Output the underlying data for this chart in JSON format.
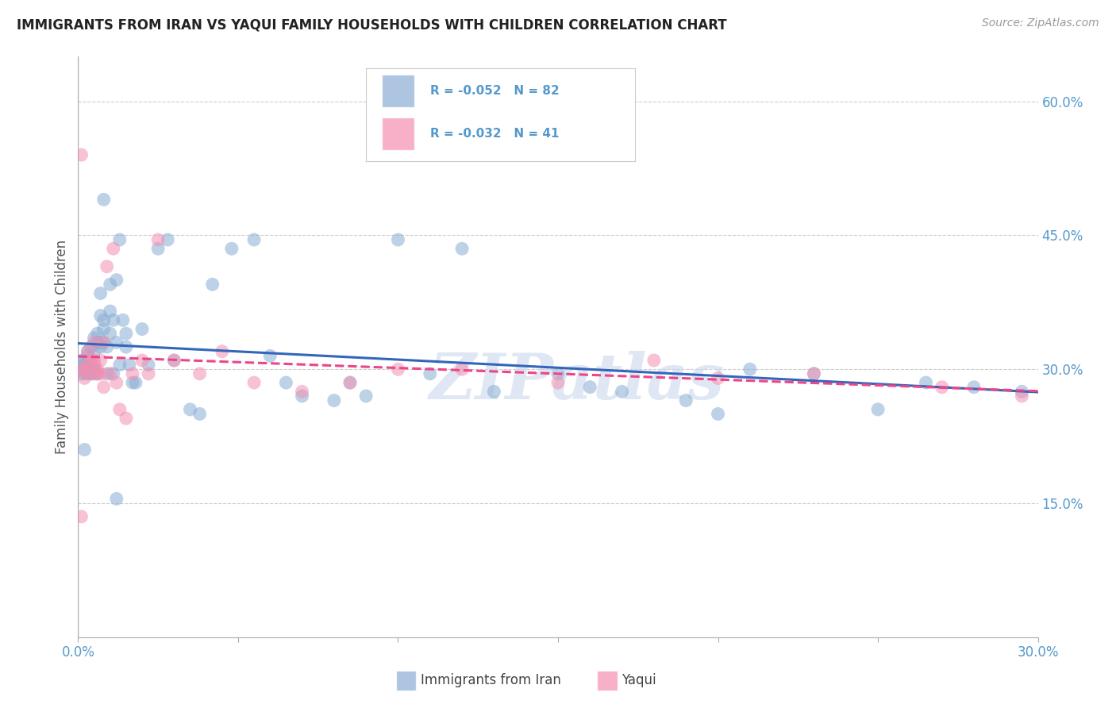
{
  "title": "IMMIGRANTS FROM IRAN VS YAQUI FAMILY HOUSEHOLDS WITH CHILDREN CORRELATION CHART",
  "source": "Source: ZipAtlas.com",
  "ylabel": "Family Households with Children",
  "legend_label1": "Immigrants from Iran",
  "legend_label2": "Yaqui",
  "legend_r1": "R = -0.052",
  "legend_n1": "N = 82",
  "legend_r2": "R = -0.032",
  "legend_n2": "N = 41",
  "xlim": [
    0.0,
    0.3
  ],
  "ylim": [
    0.0,
    0.65
  ],
  "yticks": [
    0.15,
    0.3,
    0.45,
    0.6
  ],
  "xtick_positions": [
    0.0,
    0.05,
    0.1,
    0.15,
    0.2,
    0.25,
    0.3
  ],
  "xtick_labels_show": [
    "0.0%",
    "",
    "",
    "",
    "",
    "",
    "30.0%"
  ],
  "color_blue": "#8AADD4",
  "color_pink": "#F48FB1",
  "color_line_blue": "#3366BB",
  "color_line_pink": "#EE4488",
  "color_axis_text": "#5599CC",
  "watermark": "ZIPatlas",
  "blue_x": [
    0.001,
    0.001,
    0.001,
    0.002,
    0.002,
    0.002,
    0.002,
    0.003,
    0.003,
    0.003,
    0.003,
    0.003,
    0.004,
    0.004,
    0.004,
    0.004,
    0.005,
    0.005,
    0.005,
    0.005,
    0.005,
    0.006,
    0.006,
    0.006,
    0.007,
    0.007,
    0.007,
    0.007,
    0.008,
    0.008,
    0.008,
    0.009,
    0.009,
    0.01,
    0.01,
    0.01,
    0.011,
    0.011,
    0.012,
    0.012,
    0.013,
    0.013,
    0.014,
    0.015,
    0.015,
    0.016,
    0.017,
    0.018,
    0.02,
    0.022,
    0.025,
    0.028,
    0.03,
    0.035,
    0.038,
    0.042,
    0.048,
    0.055,
    0.06,
    0.065,
    0.07,
    0.08,
    0.085,
    0.09,
    0.1,
    0.11,
    0.12,
    0.13,
    0.15,
    0.16,
    0.17,
    0.19,
    0.2,
    0.21,
    0.23,
    0.25,
    0.265,
    0.28,
    0.295,
    0.002,
    0.008,
    0.012
  ],
  "blue_y": [
    0.31,
    0.3,
    0.295,
    0.305,
    0.295,
    0.31,
    0.3,
    0.305,
    0.32,
    0.295,
    0.315,
    0.3,
    0.3,
    0.31,
    0.295,
    0.325,
    0.305,
    0.32,
    0.295,
    0.3,
    0.335,
    0.33,
    0.295,
    0.34,
    0.33,
    0.325,
    0.385,
    0.36,
    0.345,
    0.33,
    0.355,
    0.295,
    0.325,
    0.365,
    0.34,
    0.395,
    0.355,
    0.295,
    0.4,
    0.33,
    0.445,
    0.305,
    0.355,
    0.34,
    0.325,
    0.305,
    0.285,
    0.285,
    0.345,
    0.305,
    0.435,
    0.445,
    0.31,
    0.255,
    0.25,
    0.395,
    0.435,
    0.445,
    0.315,
    0.285,
    0.27,
    0.265,
    0.285,
    0.27,
    0.445,
    0.295,
    0.435,
    0.275,
    0.295,
    0.28,
    0.275,
    0.265,
    0.25,
    0.3,
    0.295,
    0.255,
    0.285,
    0.28,
    0.275,
    0.21,
    0.49,
    0.155
  ],
  "pink_x": [
    0.001,
    0.001,
    0.002,
    0.002,
    0.003,
    0.003,
    0.004,
    0.004,
    0.005,
    0.005,
    0.006,
    0.006,
    0.007,
    0.007,
    0.008,
    0.008,
    0.009,
    0.01,
    0.011,
    0.012,
    0.013,
    0.015,
    0.017,
    0.02,
    0.022,
    0.025,
    0.03,
    0.038,
    0.045,
    0.055,
    0.07,
    0.085,
    0.1,
    0.12,
    0.15,
    0.18,
    0.2,
    0.23,
    0.27,
    0.295,
    0.001
  ],
  "pink_y": [
    0.135,
    0.3,
    0.3,
    0.29,
    0.305,
    0.32,
    0.295,
    0.31,
    0.31,
    0.33,
    0.295,
    0.3,
    0.31,
    0.295,
    0.33,
    0.28,
    0.415,
    0.295,
    0.435,
    0.285,
    0.255,
    0.245,
    0.295,
    0.31,
    0.295,
    0.445,
    0.31,
    0.295,
    0.32,
    0.285,
    0.275,
    0.285,
    0.3,
    0.3,
    0.285,
    0.31,
    0.29,
    0.295,
    0.28,
    0.27,
    0.54
  ]
}
